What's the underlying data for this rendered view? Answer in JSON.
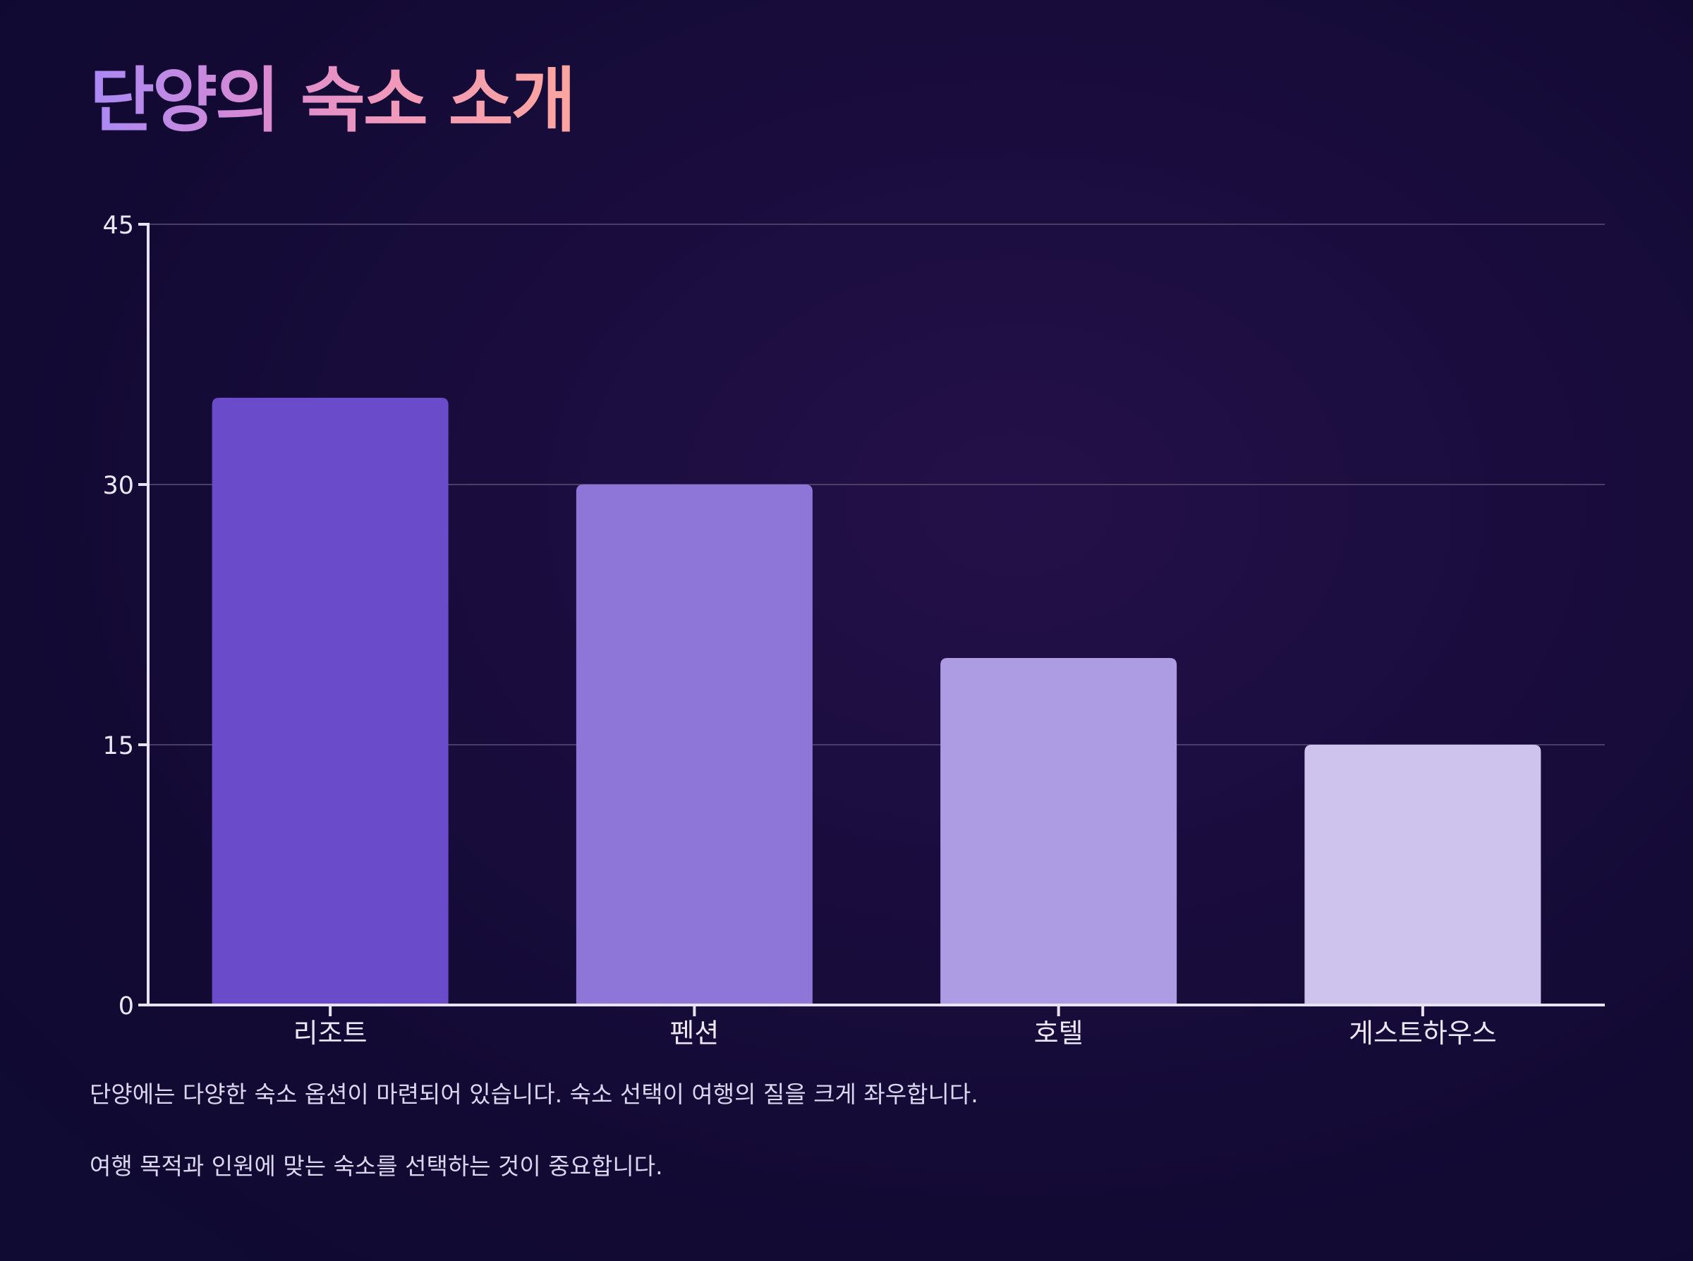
{
  "title": "단양의 숙소 소개",
  "notes": [
    "단양에는 다양한 숙소 옵션이 마련되어 있습니다. 숙소 선택이 여행의 질을 크게 좌우합니다.",
    "여행 목적과 인원에 맞는 숙소를 선택하는 것이 중요합니다."
  ],
  "colors": {
    "bars": [
      "#6a4bca",
      "#8d76d8",
      "#ad9be3",
      "#cdc3ed"
    ],
    "gridline": "#4a3e68",
    "axis": "#e8e2f2",
    "title_gradient": [
      "#a989f5",
      "#f39ab8",
      "#fca59e"
    ]
  },
  "chart_data": {
    "type": "bar",
    "title": "단양의 숙소 소개",
    "categories": [
      "리조트",
      "펜션",
      "호텔",
      "게스트하우스"
    ],
    "values": [
      35,
      30,
      20,
      15
    ],
    "yticks": [
      0,
      15,
      30,
      45
    ],
    "ylim": [
      0,
      45
    ],
    "xlabel": "",
    "ylabel": "",
    "grid": true,
    "legend": "none"
  }
}
